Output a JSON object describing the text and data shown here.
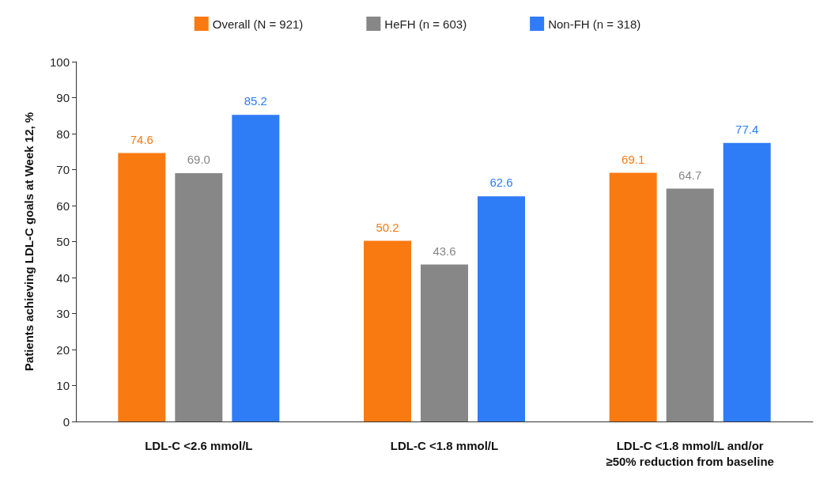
{
  "chart_data": {
    "type": "bar",
    "ylabel": "Patients achieving LDL-C goals at Week 12, %",
    "categories": [
      "LDL-C <2.6 mmol/L",
      "LDL-C <1.8 mmol/L",
      "LDL-C <1.8 mmol/L and/or\n≥50% reduction from baseline"
    ],
    "series": [
      {
        "name": "Overall (N = 921)",
        "color": "#fa7a12",
        "values": [
          74.6,
          50.2,
          69.1
        ],
        "value_labels": [
          "74.6",
          "50.2",
          "69.1"
        ]
      },
      {
        "name": "HeFH (n = 603)",
        "color": "#878787",
        "values": [
          69.0,
          43.6,
          64.7
        ],
        "value_labels": [
          "69.0",
          "43.6",
          "64.7"
        ]
      },
      {
        "name": "Non-FH (n = 318)",
        "color": "#2e7cf6",
        "values": [
          85.2,
          62.6,
          77.4
        ],
        "value_labels": [
          "85.2",
          "62.6",
          "77.4"
        ]
      }
    ],
    "ylim": [
      0,
      100
    ],
    "yticks": [
      0,
      10,
      20,
      30,
      40,
      50,
      60,
      70,
      80,
      90,
      100
    ],
    "grid": false,
    "legend": "top"
  }
}
